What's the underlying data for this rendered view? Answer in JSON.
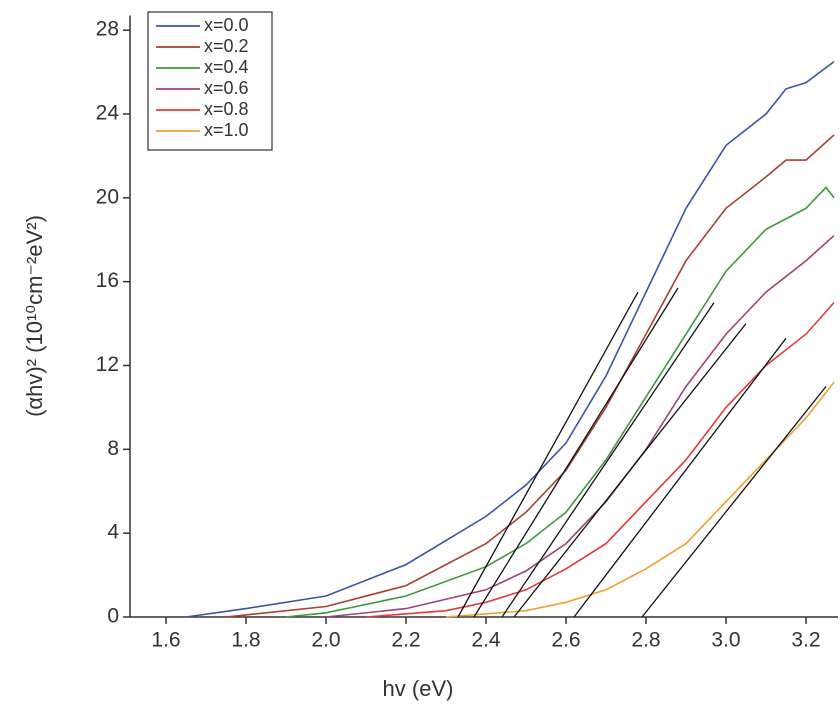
{
  "chart_data": {
    "type": "line",
    "x_label": "hv (eV)",
    "y_label": "(αhv)² (10¹⁰cm⁻²eV²)",
    "xlim": [
      1.51,
      3.28
    ],
    "ylim": [
      0,
      28.7
    ],
    "xticks": [
      1.6,
      1.8,
      {
        "value": 2,
        "label": "2.0"
      },
      2.2,
      2.4,
      2.6,
      2.8,
      {
        "value": 3,
        "label": "3.0"
      },
      3.2
    ],
    "yticks": [
      0,
      4,
      8,
      12,
      16,
      20,
      24,
      28
    ],
    "legend": "top-left",
    "series": [
      {
        "name": "x=0.0",
        "color": "#3a55a8",
        "x": [
          1.65,
          1.8,
          2.0,
          2.2,
          2.4,
          2.5,
          2.6,
          2.7,
          2.8,
          2.9,
          3.0,
          3.1,
          3.15,
          3.2,
          3.27
        ],
        "values": [
          0,
          0.4,
          1.0,
          2.5,
          4.8,
          6.3,
          8.3,
          11.5,
          15.5,
          19.5,
          22.5,
          24,
          25.2,
          25.5,
          26.5
        ]
      },
      {
        "name": "x=0.2",
        "color": "#a8402e",
        "x": [
          1.75,
          1.8,
          2.0,
          2.2,
          2.4,
          2.5,
          2.6,
          2.7,
          2.8,
          2.9,
          3.0,
          3.1,
          3.15,
          3.2,
          3.27
        ],
        "values": [
          0,
          0.1,
          0.5,
          1.5,
          3.5,
          5,
          7,
          10,
          13.5,
          17,
          19.5,
          21,
          21.8,
          21.8,
          23
        ]
      },
      {
        "name": "x=0.4",
        "color": "#3e9a3a",
        "x": [
          1.9,
          2.0,
          2.2,
          2.4,
          2.5,
          2.6,
          2.7,
          2.8,
          2.9,
          3.0,
          3.1,
          3.2,
          3.25,
          3.27
        ],
        "values": [
          0,
          0.2,
          1,
          2.4,
          3.5,
          5,
          7.5,
          10.5,
          13.5,
          16.5,
          18.5,
          19.5,
          20.5,
          20
        ]
      },
      {
        "name": "x=0.6",
        "color": "#a0407e",
        "x": [
          2.0,
          2.2,
          2.4,
          2.5,
          2.6,
          2.7,
          2.8,
          2.9,
          3.0,
          3.1,
          3.2,
          3.27
        ],
        "values": [
          0,
          0.4,
          1.3,
          2.2,
          3.5,
          5.5,
          8,
          11,
          13.5,
          15.5,
          17,
          18.2
        ]
      },
      {
        "name": "x=0.8",
        "color": "#e03a3a",
        "x": [
          2.1,
          2.3,
          2.4,
          2.5,
          2.6,
          2.7,
          2.8,
          2.9,
          3.0,
          3.1,
          3.2,
          3.27
        ],
        "values": [
          0,
          0.3,
          0.7,
          1.3,
          2.3,
          3.5,
          5.5,
          7.5,
          10,
          12,
          13.5,
          15
        ]
      },
      {
        "name": "x=1.0",
        "color": "#f0a030",
        "x": [
          2.3,
          2.5,
          2.6,
          2.7,
          2.8,
          2.9,
          3.0,
          3.1,
          3.2,
          3.27
        ],
        "values": [
          0,
          0.3,
          0.7,
          1.3,
          2.3,
          3.5,
          5.5,
          7.5,
          9.5,
          11.2
        ]
      }
    ],
    "fit_color": "#111111",
    "fit_lines": [
      {
        "x": [
          2.33,
          2.78
        ],
        "values": [
          0,
          15.5
        ]
      },
      {
        "x": [
          2.37,
          2.88
        ],
        "values": [
          0,
          15.7
        ]
      },
      {
        "x": [
          2.44,
          2.97
        ],
        "values": [
          0,
          15
        ]
      },
      {
        "x": [
          2.47,
          3.05
        ],
        "values": [
          0,
          14
        ]
      },
      {
        "x": [
          2.62,
          3.15
        ],
        "values": [
          0,
          13.3
        ]
      },
      {
        "x": [
          2.79,
          3.25
        ],
        "values": [
          0,
          11
        ]
      }
    ]
  }
}
